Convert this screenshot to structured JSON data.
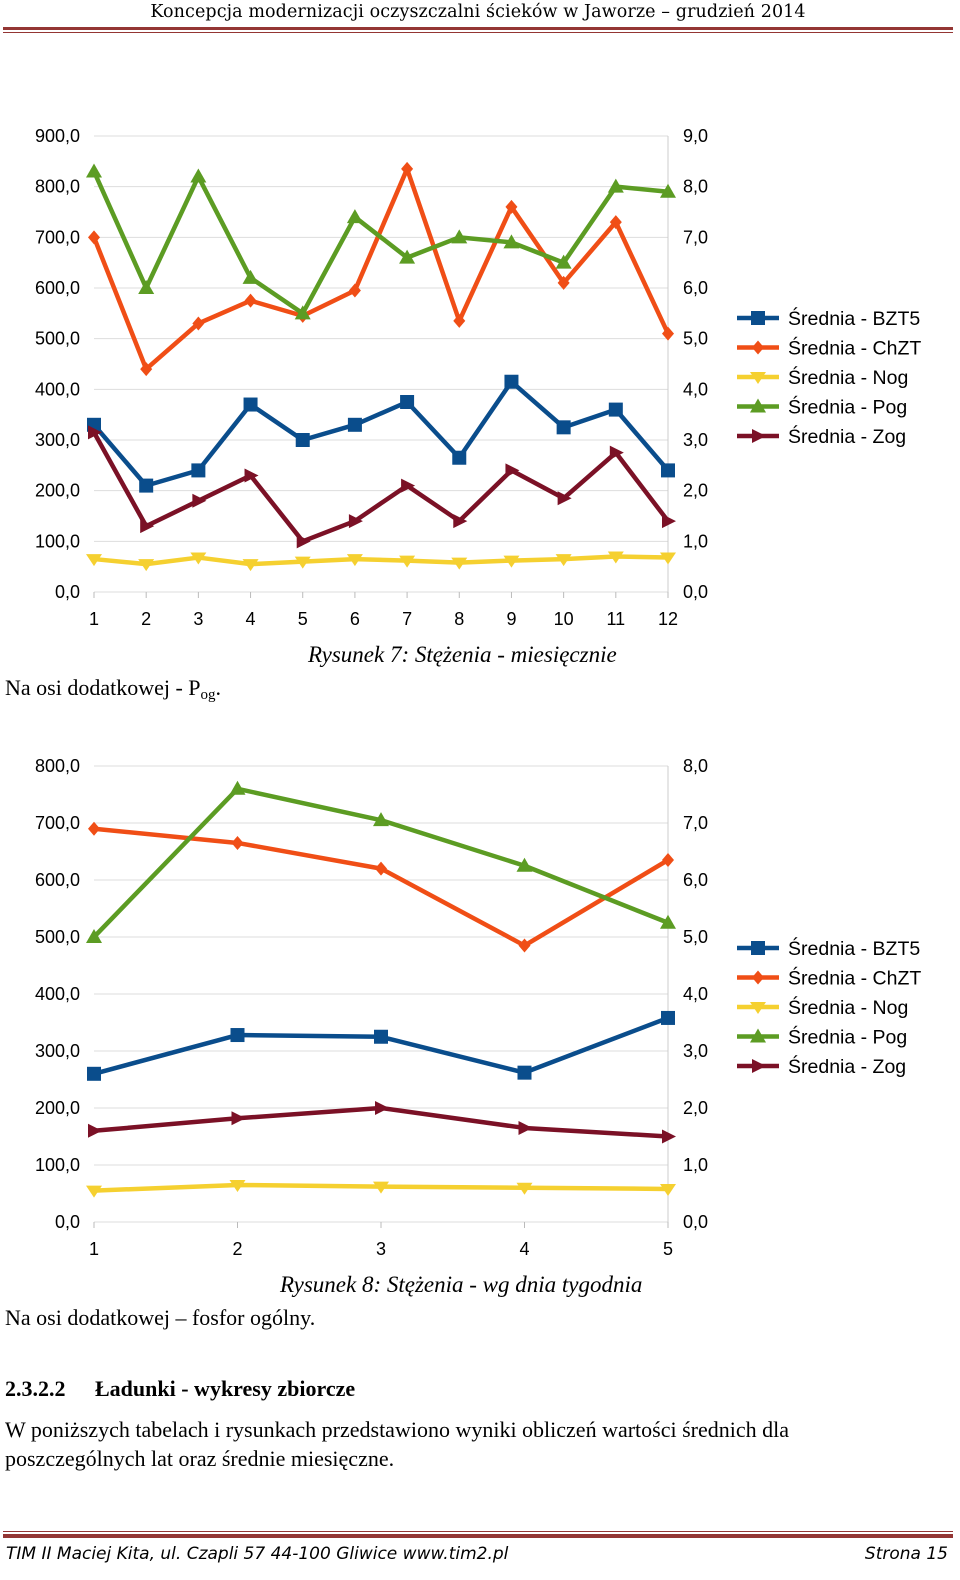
{
  "header": {
    "title": "Koncepcja modernizacji oczyszczalni ścieków w Jaworze – grudzień 2014"
  },
  "colors": {
    "BZT5": "#0a4d8c",
    "ChZT": "#f04e16",
    "Nog": "#f5d030",
    "Pog": "#5c9c23",
    "Zog": "#7b1126",
    "grid": "#dddddd",
    "rule": "#943634"
  },
  "chart_data": [
    {
      "type": "line",
      "title": "",
      "x": [
        1,
        2,
        3,
        4,
        5,
        6,
        7,
        8,
        9,
        10,
        11,
        12
      ],
      "x_tick_labels": [
        "1",
        "2",
        "3",
        "4",
        "5",
        "6",
        "7",
        "8",
        "9",
        "10",
        "11",
        "12"
      ],
      "ylim": [
        0,
        900
      ],
      "y_ticks": [
        0,
        100,
        200,
        300,
        400,
        500,
        600,
        700,
        800,
        900
      ],
      "y_tick_labels": [
        "0,0",
        "100,0",
        "200,0",
        "300,0",
        "400,0",
        "500,0",
        "600,0",
        "700,0",
        "800,0",
        "900,0"
      ],
      "y2lim": [
        0,
        9
      ],
      "y2_tick_labels": [
        "0,0",
        "1,0",
        "2,0",
        "3,0",
        "4,0",
        "5,0",
        "6,0",
        "7,0",
        "8,0",
        "9,0"
      ],
      "grid": true,
      "legend_position": "right",
      "series": [
        {
          "key": "BZT5",
          "name": "Średnia - BZT5",
          "axis": "primary",
          "marker": "square",
          "values": [
            330,
            210,
            240,
            370,
            300,
            330,
            375,
            265,
            415,
            325,
            360,
            240
          ]
        },
        {
          "key": "ChZT",
          "name": "Średnia - ChZT",
          "axis": "primary",
          "marker": "diamond",
          "values": [
            700,
            440,
            530,
            575,
            545,
            595,
            835,
            535,
            760,
            610,
            730,
            510
          ]
        },
        {
          "key": "Nog",
          "name": "Średnia - Nog",
          "axis": "primary",
          "marker": "triangle-down",
          "values": [
            65,
            55,
            68,
            55,
            60,
            65,
            62,
            58,
            62,
            65,
            70,
            68
          ]
        },
        {
          "key": "Pog",
          "name": "Średnia - Pog",
          "axis": "secondary",
          "marker": "triangle-up",
          "values": [
            8.3,
            6.0,
            8.2,
            6.2,
            5.5,
            7.4,
            6.6,
            7.0,
            6.9,
            6.5,
            8.0,
            7.9
          ]
        },
        {
          "key": "Zog",
          "name": "Średnia - Zog",
          "axis": "primary",
          "marker": "triangle-right",
          "values": [
            315,
            130,
            180,
            230,
            100,
            140,
            210,
            140,
            240,
            185,
            275,
            140
          ]
        }
      ],
      "caption": "Rysunek 7: Stężenia - miesięcznie"
    },
    {
      "type": "line",
      "title": "",
      "x": [
        1,
        2,
        3,
        4,
        5
      ],
      "x_tick_labels": [
        "1",
        "2",
        "3",
        "4",
        "5"
      ],
      "ylim": [
        0,
        800
      ],
      "y_ticks": [
        0,
        100,
        200,
        300,
        400,
        500,
        600,
        700,
        800
      ],
      "y_tick_labels": [
        "0,0",
        "100,0",
        "200,0",
        "300,0",
        "400,0",
        "500,0",
        "600,0",
        "700,0",
        "800,0"
      ],
      "y2lim": [
        0,
        8
      ],
      "y2_tick_labels": [
        "0,0",
        "1,0",
        "2,0",
        "3,0",
        "4,0",
        "5,0",
        "6,0",
        "7,0",
        "8,0"
      ],
      "grid": true,
      "legend_position": "right",
      "series": [
        {
          "key": "BZT5",
          "name": "Średnia - BZT5",
          "axis": "primary",
          "marker": "square",
          "values": [
            260,
            328,
            325,
            262,
            358
          ]
        },
        {
          "key": "ChZT",
          "name": "Średnia - ChZT",
          "axis": "primary",
          "marker": "diamond",
          "values": [
            690,
            665,
            620,
            485,
            635
          ]
        },
        {
          "key": "Nog",
          "name": "Średnia - Nog",
          "axis": "primary",
          "marker": "triangle-down",
          "values": [
            55,
            65,
            62,
            60,
            58
          ]
        },
        {
          "key": "Pog",
          "name": "Średnia - Pog",
          "axis": "secondary",
          "marker": "triangle-up",
          "values": [
            5.0,
            7.6,
            7.05,
            6.25,
            5.25
          ]
        },
        {
          "key": "Zog",
          "name": "Średnia - Zog",
          "axis": "primary",
          "marker": "triangle-right",
          "values": [
            160,
            182,
            200,
            165,
            150
          ]
        }
      ],
      "caption": "Rysunek 8: Stężenia - wg dnia tygodnia"
    }
  ],
  "notes": {
    "chart1_prefix": "Na osi dodatkowej - P",
    "chart1_sub": "og",
    "chart1_suffix": ".",
    "chart2": "Na osi dodatkowej – fosfor ogólny."
  },
  "section": {
    "number": "2.3.2.2",
    "title": "Ładunki - wykresy zbiorcze",
    "paragraph": "W poniższych tabelach i rysunkach przedstawiono wyniki obliczeń wartości średnich dla poszczególnych lat oraz średnie miesięczne."
  },
  "footer": {
    "left": "TIM II Maciej Kita, ul. Czapli 57 44-100 Gliwice www.tim2.pl",
    "right": "Strona 15"
  }
}
